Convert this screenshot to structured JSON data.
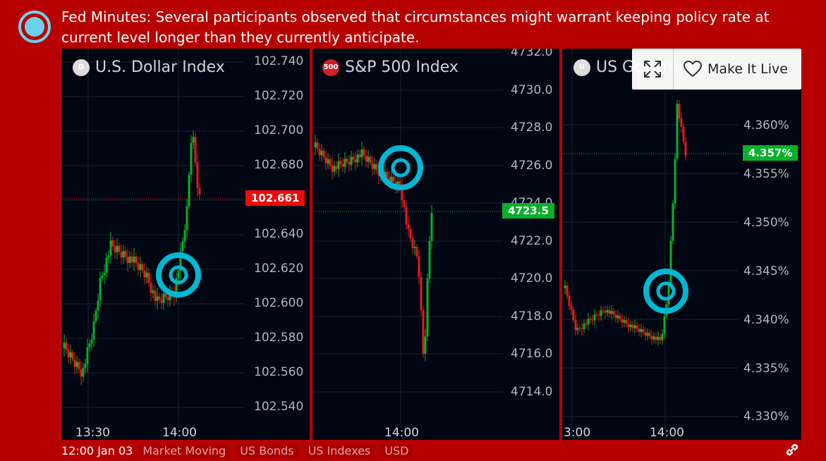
{
  "headline": "Fed Minutes: Several participants observed that circumstances might warrant keeping policy rate at current level longer than they currently anticipate.",
  "colors": {
    "background": "#b70000",
    "up": "#08b02a",
    "down": "#e5191b",
    "target": "#00b8d4",
    "panel": "#010712"
  },
  "make_it_live": {
    "label": "Make It Live",
    "expand_icon": "expand-icon",
    "heart_icon": "heart-icon"
  },
  "footer": {
    "time": "12:00 Jan 03",
    "tags": [
      "Market Moving",
      "US Bonds",
      "US Indexes",
      "USD"
    ],
    "link_icon": "link-icon"
  },
  "panels": [
    {
      "title": "U.S. Dollar Index",
      "symbol_badge": "D",
      "last_price": "102.661",
      "y_ticks": [
        "102.740",
        "102.720",
        "102.700",
        "102.680",
        "102.660",
        "102.640",
        "102.620",
        "102.600",
        "102.580",
        "102.560",
        "102.540"
      ],
      "x_ticks": [
        "13:30",
        "14:00"
      ]
    },
    {
      "title": "S&P 500 Index",
      "symbol_badge": "500",
      "last_price": "4723.5",
      "y_ticks": [
        "4732.0",
        "4730.0",
        "4728.0",
        "4726.0",
        "4724.0",
        "4722.0",
        "4720.0",
        "4718.0",
        "4716.0",
        "4714.0"
      ],
      "x_ticks": [
        "14:00"
      ]
    },
    {
      "title": "US Government",
      "symbol_badge": "U",
      "last_price": "4.357%",
      "y_ticks": [
        "4.360%",
        "4.355%",
        "4.350%",
        "4.345%",
        "4.340%",
        "4.335%",
        "4.330%"
      ],
      "x_ticks": [
        "3:00",
        "14:00"
      ]
    }
  ]
}
